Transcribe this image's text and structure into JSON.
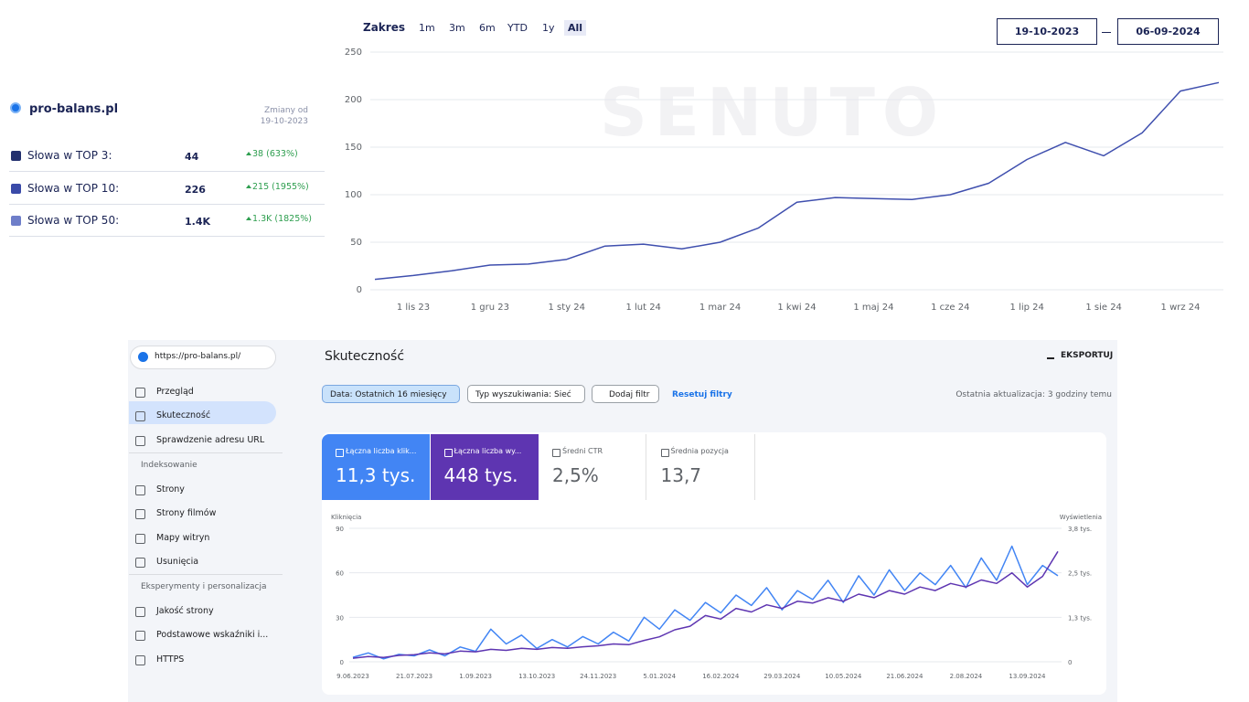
{
  "senuto": {
    "domain": "pro-balans.pl",
    "changes_header": [
      "Zmiany od",
      "19-10-2023"
    ],
    "rows": [
      {
        "label": "Słowa w TOP 3:",
        "value": "44",
        "change": "38 (633%)",
        "color": "#23306e"
      },
      {
        "label": "Słowa w TOP 10:",
        "value": "226",
        "change": "215 (1955%)",
        "color": "#3a4aa8"
      },
      {
        "label": "Słowa w TOP 50:",
        "value": "1.4K",
        "change": "1.3K (1825%)",
        "color": "#6e7ec9"
      }
    ]
  },
  "range": {
    "label": "Zakres",
    "options": [
      "1m",
      "3m",
      "6m",
      "YTD",
      "1y",
      "All"
    ],
    "active": "All",
    "from": "19-10-2023",
    "to": "06-09-2024"
  },
  "watermark": "SENUTO",
  "gsc": {
    "property": "https://pro-balans.pl/",
    "title": "Skuteczność",
    "export": "EKSPORTUJ",
    "nav": [
      "Przegląd",
      "Skuteczność",
      "Sprawdzenie adresu URL"
    ],
    "active": "Skuteczność",
    "sections": [
      {
        "title": "Indeksowanie",
        "items": [
          "Strony",
          "Strony filmów",
          "Mapy witryn",
          "Usunięcia"
        ]
      },
      {
        "title": "Eksperymenty i personalizacja",
        "items": [
          "Jakość strony",
          "Podstawowe wskaźniki i...",
          "HTTPS"
        ]
      }
    ],
    "filters": [
      "Data: Ostatnich 16 miesięcy",
      "Typ wyszukiwania: Sieć",
      "Dodaj filtr"
    ],
    "reset": "Resetuj filtry",
    "updated": "Ostatnia aktualizacja: 3 godziny temu",
    "metrics": [
      {
        "label": "Łączna liczba klik...",
        "value": "11,3 tys.",
        "color": "#4285f4"
      },
      {
        "label": "Łączna liczba wy...",
        "value": "448 tys.",
        "color": "#5e35b1"
      },
      {
        "label": "Średni CTR",
        "value": "2,5%"
      },
      {
        "label": "Średnia pozycja",
        "value": "13,7"
      }
    ]
  },
  "chart_data": [
    {
      "type": "line",
      "color": "#3f4fae",
      "categories": [
        null,
        "1 lis 23",
        null,
        "1 gru 23",
        null,
        "1 sty 24",
        null,
        "1 lut 24",
        null,
        "1 mar 24",
        null,
        "1 kwi 24",
        null,
        "1 maj 24",
        null,
        "1 cze 24",
        null,
        "1 lip 24",
        null,
        "1 sie 24",
        null,
        "1 wrz 24",
        null
      ],
      "values": [
        11,
        15,
        20,
        26,
        27,
        32,
        46,
        48,
        43,
        50,
        65,
        92,
        97,
        96,
        95,
        100,
        112,
        137,
        155,
        141,
        165,
        209,
        218
      ],
      "ylim": [
        0,
        250
      ],
      "yticks": [
        0,
        50,
        100,
        150,
        200,
        250
      ],
      "grid": true
    },
    {
      "type": "line",
      "ylabel": "Kliknięcia",
      "y2label": "Wyświetlenia",
      "categories": [
        "9.06.2023",
        null,
        null,
        null,
        "21.07.2023",
        null,
        null,
        null,
        "1.09.2023",
        null,
        null,
        null,
        "13.10.2023",
        null,
        null,
        null,
        "24.11.2023",
        null,
        null,
        null,
        "5.01.2024",
        null,
        null,
        null,
        "16.02.2024",
        null,
        null,
        null,
        "29.03.2024",
        null,
        null,
        null,
        "10.05.2024",
        null,
        null,
        null,
        "21.06.2024",
        null,
        null,
        null,
        "2.08.2024",
        null,
        null,
        null,
        "13.09.2024",
        null,
        null
      ],
      "series": [
        {
          "color": "#4285f4",
          "values": [
            3,
            6,
            2,
            5,
            4,
            8,
            4,
            10,
            7,
            22,
            12,
            18,
            9,
            15,
            10,
            17,
            12,
            20,
            14,
            30,
            22,
            35,
            28,
            40,
            33,
            45,
            38,
            50,
            35,
            48,
            42,
            55,
            40,
            58,
            45,
            62,
            48,
            60,
            52,
            65,
            50,
            70,
            55,
            78,
            52,
            65,
            58
          ]
        },
        {
          "color": "#5e35b1",
          "axis": "y2",
          "values": [
            100,
            150,
            120,
            180,
            200,
            250,
            220,
            300,
            280,
            350,
            320,
            380,
            350,
            400,
            380,
            420,
            450,
            500,
            480,
            600,
            700,
            900,
            1000,
            1300,
            1200,
            1500,
            1400,
            1600,
            1500,
            1700,
            1650,
            1800,
            1700,
            1900,
            1800,
            2000,
            1900,
            2100,
            2000,
            2200,
            2100,
            2300,
            2200,
            2500,
            2100,
            2400,
            3100
          ]
        }
      ],
      "ylim": [
        0,
        90
      ],
      "yticks": [
        0,
        30,
        60,
        90
      ],
      "y2lim": [
        0,
        3750
      ],
      "y2ticks": [
        0,
        {
          "value": 1250,
          "label": "1,3 tys."
        },
        {
          "value": 2500,
          "label": "2,5 tys."
        },
        {
          "value": 3750,
          "label": "3,8 tys."
        }
      ],
      "grid": true
    }
  ]
}
